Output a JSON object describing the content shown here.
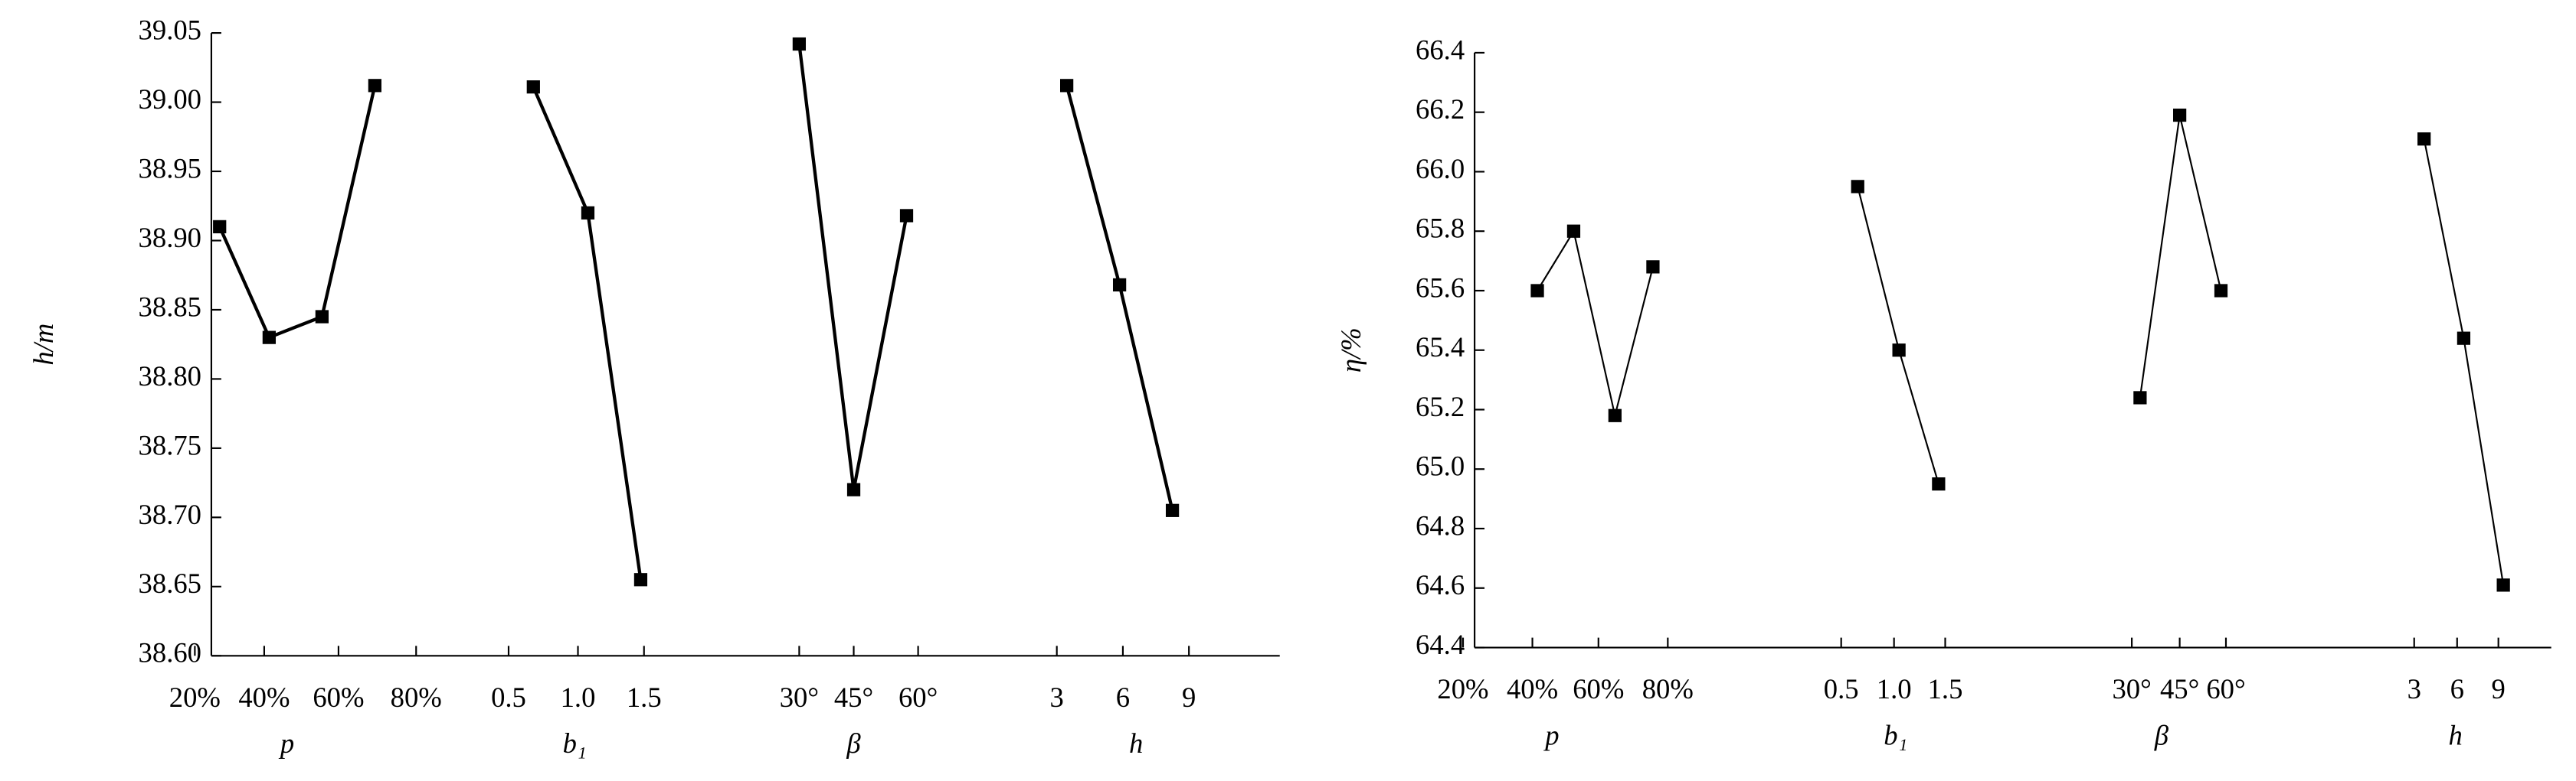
{
  "chart_data": [
    {
      "type": "line",
      "ylabel": "h/m",
      "ylim": [
        38.6,
        39.05
      ],
      "yticks": [
        {
          "value": 38.6,
          "label": "38.60"
        },
        38.65,
        {
          "value": 38.7,
          "label": "38.70"
        },
        38.75,
        {
          "value": 38.8,
          "label": "38.80"
        },
        38.85,
        {
          "value": 38.9,
          "label": "38.90"
        },
        38.95,
        {
          "value": 39.0,
          "label": "39.00"
        },
        39.05
      ],
      "groups": [
        {
          "name": "p",
          "categories": [
            "20%",
            "40%",
            "60%",
            "80%"
          ],
          "values": [
            38.91,
            38.83,
            38.845,
            39.012
          ]
        },
        {
          "name": "b₁",
          "categories": [
            "0.5",
            "1.0",
            "1.5"
          ],
          "values": [
            39.011,
            38.92,
            38.655
          ]
        },
        {
          "name": "β",
          "categories": [
            "30°",
            "45°",
            "60°"
          ],
          "values": [
            39.042,
            38.72,
            38.918
          ]
        },
        {
          "name": "h",
          "categories": [
            "3",
            "6",
            "9"
          ],
          "values": [
            39.012,
            38.868,
            38.705
          ]
        }
      ]
    },
    {
      "type": "line",
      "ylabel": "η/%",
      "ylim": [
        64.4,
        66.4
      ],
      "yticks": [
        64.4,
        64.6,
        64.8,
        {
          "value": 65.0,
          "label": "65.0"
        },
        65.2,
        65.4,
        65.6,
        65.8,
        {
          "value": 66.0,
          "label": "66.0"
        },
        66.2,
        66.4
      ],
      "groups": [
        {
          "name": "p",
          "categories": [
            "20%",
            "40%",
            "60%",
            "80%"
          ],
          "values": [
            65.6,
            65.8,
            65.18,
            65.68
          ]
        },
        {
          "name": "b₁",
          "categories": [
            "0.5",
            "1.0",
            "1.5"
          ],
          "values": [
            65.95,
            65.4,
            64.95
          ]
        },
        {
          "name": "β",
          "categories": [
            "30°",
            "45°",
            "60°"
          ],
          "values": [
            65.24,
            66.19,
            65.6
          ]
        },
        {
          "name": "h",
          "categories": [
            "3",
            "6",
            "9"
          ],
          "values": [
            66.11,
            65.44,
            64.61
          ]
        }
      ]
    }
  ]
}
